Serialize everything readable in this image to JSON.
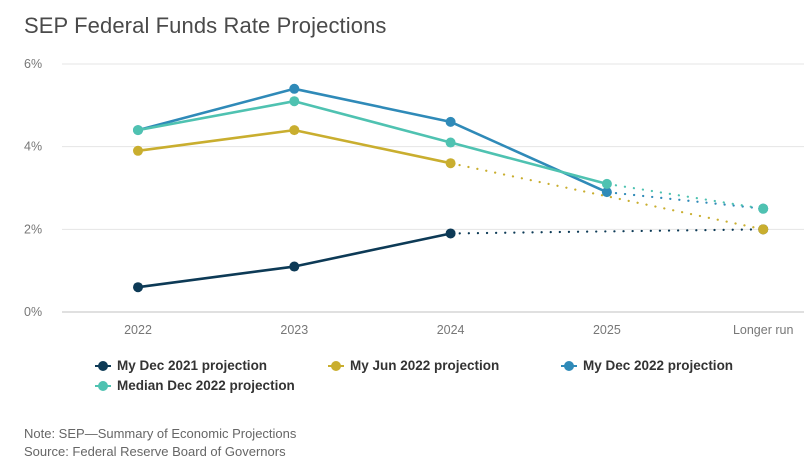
{
  "chart_data": {
    "type": "line",
    "title": "SEP Federal Funds Rate Projections",
    "xlabel": "",
    "ylabel": "",
    "categories": [
      "2022",
      "2023",
      "2024",
      "2025",
      "Longer run"
    ],
    "y_ticks": [
      "0%",
      "2%",
      "4%",
      "6%"
    ],
    "y_tick_values": [
      0,
      2,
      4,
      6
    ],
    "ylim": [
      0,
      6
    ],
    "grid": true,
    "legend_position": "bottom",
    "series": [
      {
        "name": "My Dec 2021 projection",
        "color": "#0d3a56",
        "values": [
          0.6,
          1.1,
          1.9,
          null,
          2.0
        ],
        "dotted_from_index": 2
      },
      {
        "name": "My Jun 2022 projection",
        "color": "#c9ae2f",
        "values": [
          3.9,
          4.4,
          3.6,
          null,
          2.0
        ],
        "dotted_from_index": 2
      },
      {
        "name": "My Dec 2022 projection",
        "color": "#2f8ab8",
        "values": [
          4.4,
          5.4,
          4.6,
          2.9,
          2.5
        ],
        "dotted_from_index": 3
      },
      {
        "name": "Median Dec 2022 projection",
        "color": "#4fc2b1",
        "values": [
          4.4,
          5.1,
          4.1,
          3.1,
          2.5
        ],
        "dotted_from_index": 3
      }
    ]
  },
  "notes": {
    "note": "Note: SEP—Summary of Economic Projections",
    "source": "Source: Federal Reserve Board of Governors"
  }
}
